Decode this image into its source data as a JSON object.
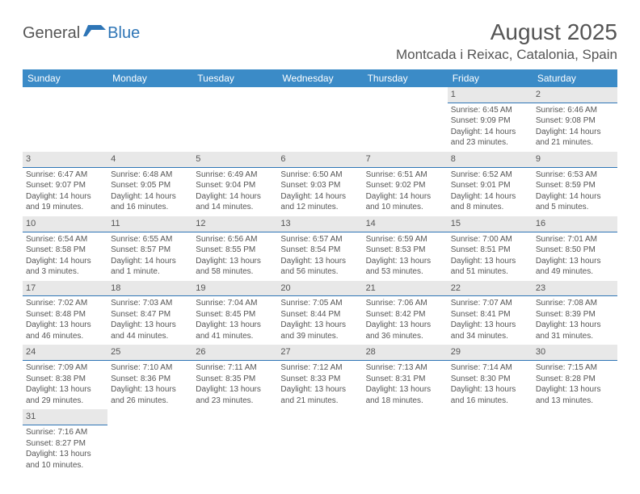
{
  "brand": {
    "general": "General",
    "blue": "Blue"
  },
  "title": "August 2025",
  "location": "Montcada i Reixac, Catalonia, Spain",
  "colors": {
    "header_bg": "#3b8bc7",
    "header_text": "#ffffff",
    "day_bar_bg": "#e8e8e8",
    "day_bar_border": "#2e75b6",
    "text": "#555555",
    "background": "#ffffff"
  },
  "fonts": {
    "title_size": 28,
    "location_size": 17,
    "dayhead_size": 12,
    "cell_size": 10
  },
  "day_headers": [
    "Sunday",
    "Monday",
    "Tuesday",
    "Wednesday",
    "Thursday",
    "Friday",
    "Saturday"
  ],
  "weeks": [
    [
      null,
      null,
      null,
      null,
      null,
      {
        "n": "1",
        "sunrise": "Sunrise: 6:45 AM",
        "sunset": "Sunset: 9:09 PM",
        "day1": "Daylight: 14 hours",
        "day2": "and 23 minutes."
      },
      {
        "n": "2",
        "sunrise": "Sunrise: 6:46 AM",
        "sunset": "Sunset: 9:08 PM",
        "day1": "Daylight: 14 hours",
        "day2": "and 21 minutes."
      }
    ],
    [
      {
        "n": "3",
        "sunrise": "Sunrise: 6:47 AM",
        "sunset": "Sunset: 9:07 PM",
        "day1": "Daylight: 14 hours",
        "day2": "and 19 minutes."
      },
      {
        "n": "4",
        "sunrise": "Sunrise: 6:48 AM",
        "sunset": "Sunset: 9:05 PM",
        "day1": "Daylight: 14 hours",
        "day2": "and 16 minutes."
      },
      {
        "n": "5",
        "sunrise": "Sunrise: 6:49 AM",
        "sunset": "Sunset: 9:04 PM",
        "day1": "Daylight: 14 hours",
        "day2": "and 14 minutes."
      },
      {
        "n": "6",
        "sunrise": "Sunrise: 6:50 AM",
        "sunset": "Sunset: 9:03 PM",
        "day1": "Daylight: 14 hours",
        "day2": "and 12 minutes."
      },
      {
        "n": "7",
        "sunrise": "Sunrise: 6:51 AM",
        "sunset": "Sunset: 9:02 PM",
        "day1": "Daylight: 14 hours",
        "day2": "and 10 minutes."
      },
      {
        "n": "8",
        "sunrise": "Sunrise: 6:52 AM",
        "sunset": "Sunset: 9:01 PM",
        "day1": "Daylight: 14 hours",
        "day2": "and 8 minutes."
      },
      {
        "n": "9",
        "sunrise": "Sunrise: 6:53 AM",
        "sunset": "Sunset: 8:59 PM",
        "day1": "Daylight: 14 hours",
        "day2": "and 5 minutes."
      }
    ],
    [
      {
        "n": "10",
        "sunrise": "Sunrise: 6:54 AM",
        "sunset": "Sunset: 8:58 PM",
        "day1": "Daylight: 14 hours",
        "day2": "and 3 minutes."
      },
      {
        "n": "11",
        "sunrise": "Sunrise: 6:55 AM",
        "sunset": "Sunset: 8:57 PM",
        "day1": "Daylight: 14 hours",
        "day2": "and 1 minute."
      },
      {
        "n": "12",
        "sunrise": "Sunrise: 6:56 AM",
        "sunset": "Sunset: 8:55 PM",
        "day1": "Daylight: 13 hours",
        "day2": "and 58 minutes."
      },
      {
        "n": "13",
        "sunrise": "Sunrise: 6:57 AM",
        "sunset": "Sunset: 8:54 PM",
        "day1": "Daylight: 13 hours",
        "day2": "and 56 minutes."
      },
      {
        "n": "14",
        "sunrise": "Sunrise: 6:59 AM",
        "sunset": "Sunset: 8:53 PM",
        "day1": "Daylight: 13 hours",
        "day2": "and 53 minutes."
      },
      {
        "n": "15",
        "sunrise": "Sunrise: 7:00 AM",
        "sunset": "Sunset: 8:51 PM",
        "day1": "Daylight: 13 hours",
        "day2": "and 51 minutes."
      },
      {
        "n": "16",
        "sunrise": "Sunrise: 7:01 AM",
        "sunset": "Sunset: 8:50 PM",
        "day1": "Daylight: 13 hours",
        "day2": "and 49 minutes."
      }
    ],
    [
      {
        "n": "17",
        "sunrise": "Sunrise: 7:02 AM",
        "sunset": "Sunset: 8:48 PM",
        "day1": "Daylight: 13 hours",
        "day2": "and 46 minutes."
      },
      {
        "n": "18",
        "sunrise": "Sunrise: 7:03 AM",
        "sunset": "Sunset: 8:47 PM",
        "day1": "Daylight: 13 hours",
        "day2": "and 44 minutes."
      },
      {
        "n": "19",
        "sunrise": "Sunrise: 7:04 AM",
        "sunset": "Sunset: 8:45 PM",
        "day1": "Daylight: 13 hours",
        "day2": "and 41 minutes."
      },
      {
        "n": "20",
        "sunrise": "Sunrise: 7:05 AM",
        "sunset": "Sunset: 8:44 PM",
        "day1": "Daylight: 13 hours",
        "day2": "and 39 minutes."
      },
      {
        "n": "21",
        "sunrise": "Sunrise: 7:06 AM",
        "sunset": "Sunset: 8:42 PM",
        "day1": "Daylight: 13 hours",
        "day2": "and 36 minutes."
      },
      {
        "n": "22",
        "sunrise": "Sunrise: 7:07 AM",
        "sunset": "Sunset: 8:41 PM",
        "day1": "Daylight: 13 hours",
        "day2": "and 34 minutes."
      },
      {
        "n": "23",
        "sunrise": "Sunrise: 7:08 AM",
        "sunset": "Sunset: 8:39 PM",
        "day1": "Daylight: 13 hours",
        "day2": "and 31 minutes."
      }
    ],
    [
      {
        "n": "24",
        "sunrise": "Sunrise: 7:09 AM",
        "sunset": "Sunset: 8:38 PM",
        "day1": "Daylight: 13 hours",
        "day2": "and 29 minutes."
      },
      {
        "n": "25",
        "sunrise": "Sunrise: 7:10 AM",
        "sunset": "Sunset: 8:36 PM",
        "day1": "Daylight: 13 hours",
        "day2": "and 26 minutes."
      },
      {
        "n": "26",
        "sunrise": "Sunrise: 7:11 AM",
        "sunset": "Sunset: 8:35 PM",
        "day1": "Daylight: 13 hours",
        "day2": "and 23 minutes."
      },
      {
        "n": "27",
        "sunrise": "Sunrise: 7:12 AM",
        "sunset": "Sunset: 8:33 PM",
        "day1": "Daylight: 13 hours",
        "day2": "and 21 minutes."
      },
      {
        "n": "28",
        "sunrise": "Sunrise: 7:13 AM",
        "sunset": "Sunset: 8:31 PM",
        "day1": "Daylight: 13 hours",
        "day2": "and 18 minutes."
      },
      {
        "n": "29",
        "sunrise": "Sunrise: 7:14 AM",
        "sunset": "Sunset: 8:30 PM",
        "day1": "Daylight: 13 hours",
        "day2": "and 16 minutes."
      },
      {
        "n": "30",
        "sunrise": "Sunrise: 7:15 AM",
        "sunset": "Sunset: 8:28 PM",
        "day1": "Daylight: 13 hours",
        "day2": "and 13 minutes."
      }
    ],
    [
      {
        "n": "31",
        "sunrise": "Sunrise: 7:16 AM",
        "sunset": "Sunset: 8:27 PM",
        "day1": "Daylight: 13 hours",
        "day2": "and 10 minutes."
      },
      null,
      null,
      null,
      null,
      null,
      null
    ]
  ]
}
